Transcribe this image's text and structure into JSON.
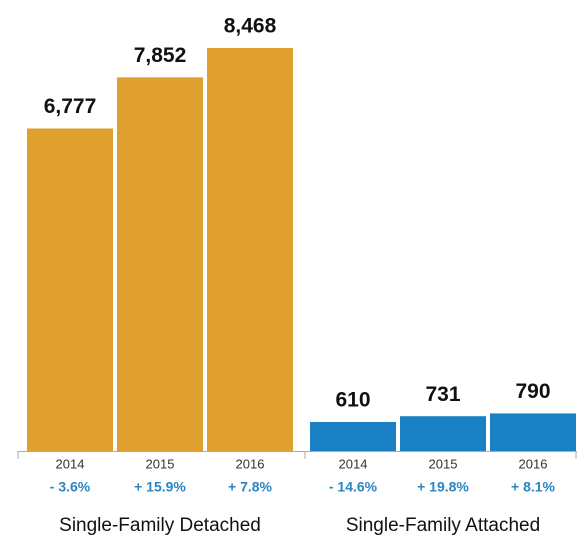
{
  "chart_data": {
    "type": "bar",
    "groups": [
      {
        "name": "Single-Family Detached",
        "color": "#e0a030",
        "categories": [
          "2014",
          "2015",
          "2016"
        ],
        "values": [
          6777,
          7852,
          8468
        ],
        "value_labels": [
          "6,777",
          "7,852",
          "8,468"
        ],
        "changes": [
          "- 3.6%",
          "+ 15.9%",
          "+ 7.8%"
        ]
      },
      {
        "name": "Single-Family Attached",
        "color": "#1a80c4",
        "categories": [
          "2014",
          "2015",
          "2016"
        ],
        "values": [
          610,
          731,
          790
        ],
        "value_labels": [
          "610",
          "731",
          "790"
        ],
        "changes": [
          "- 14.6%",
          "+ 19.8%",
          "+ 8.1%"
        ]
      }
    ]
  }
}
